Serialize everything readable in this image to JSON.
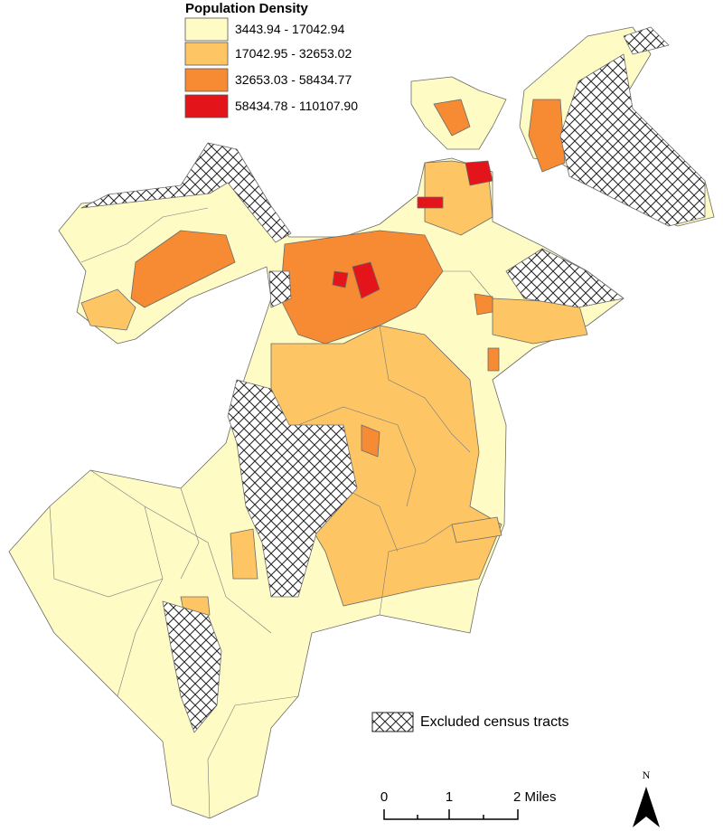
{
  "legend": {
    "title": "Population Density",
    "classes": [
      {
        "label": "3443.94 - 17042.94",
        "color": "#fefbc4"
      },
      {
        "label": "17042.95 - 32653.02",
        "color": "#fdc564"
      },
      {
        "label": "32653.03 - 58434.77",
        "color": "#f68b33"
      },
      {
        "label": "58434.78 - 110107.90",
        "color": "#e4141b"
      }
    ],
    "excluded": "Excluded census tracts"
  },
  "scale_bar": {
    "labels": [
      "0",
      "1",
      "2 Miles"
    ]
  },
  "north_arrow": "N"
}
